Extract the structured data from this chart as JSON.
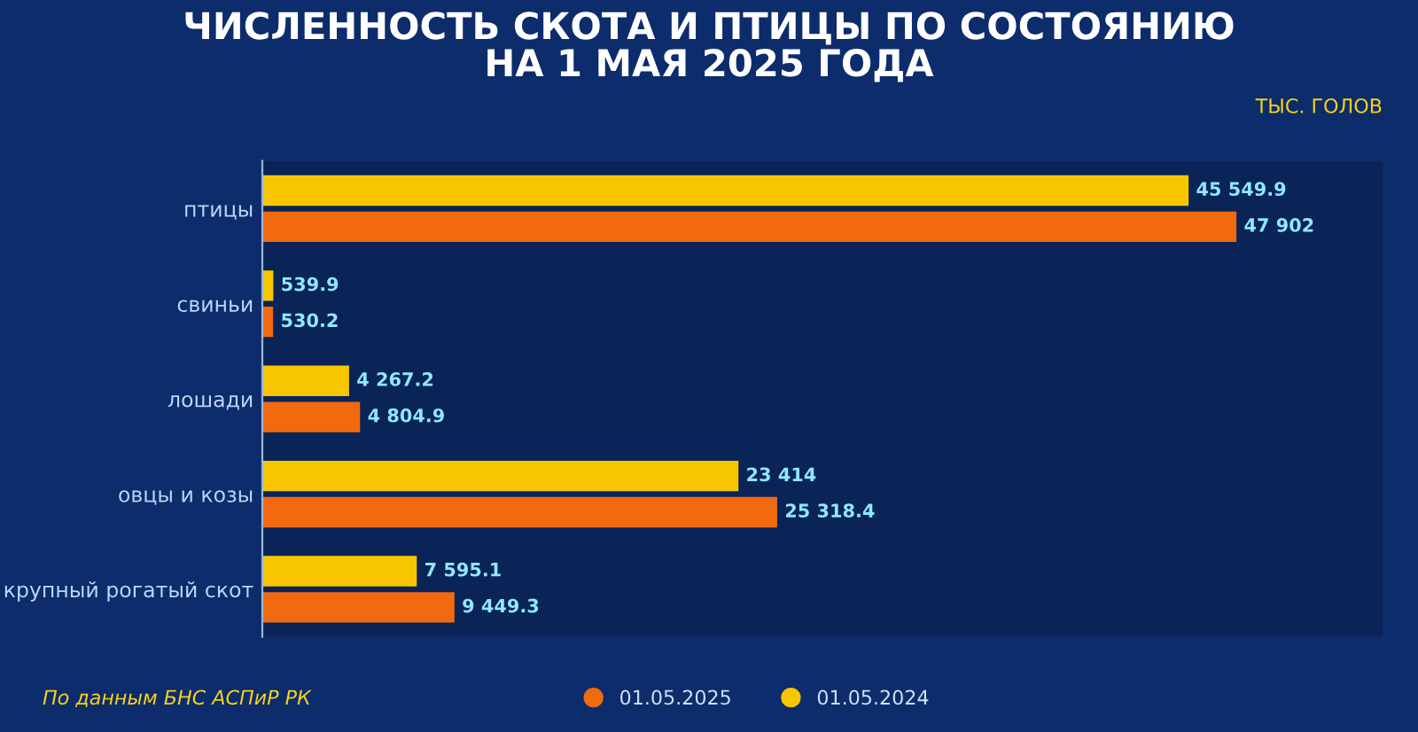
{
  "chart_data": {
    "type": "bar",
    "orientation": "horizontal",
    "title": "ЧИСЛЕННОСТЬ СКОТА И ПТИЦЫ ПО СОСТОЯНИЮ\nНА 1 МАЯ 2025 ГОДА",
    "categories": [
      "птицы",
      "свиньи",
      "лошади",
      "овцы и козы",
      "крупный рогатый скот"
    ],
    "series": [
      {
        "name": "01.05.2024",
        "color": "#f7c600",
        "values": [
          45549.9,
          539.9,
          4267.2,
          23414,
          7595.1
        ],
        "value_labels": [
          "45 549.9",
          "539.9",
          "4 267.2",
          "23 414",
          "7 595.1"
        ]
      },
      {
        "name": "01.05.2025",
        "color": "#f26a10",
        "values": [
          47902,
          530.2,
          4804.9,
          25318.4,
          9449.3
        ],
        "value_labels": [
          "47 902",
          "530.2",
          "4 804.9",
          "25 318.4",
          "9 449.3"
        ]
      }
    ],
    "legend": "bottom",
    "grid": false,
    "annotations": [
      "ТЫС. ГОЛОВ",
      "По данным БНС АСПиР РК"
    ]
  }
}
